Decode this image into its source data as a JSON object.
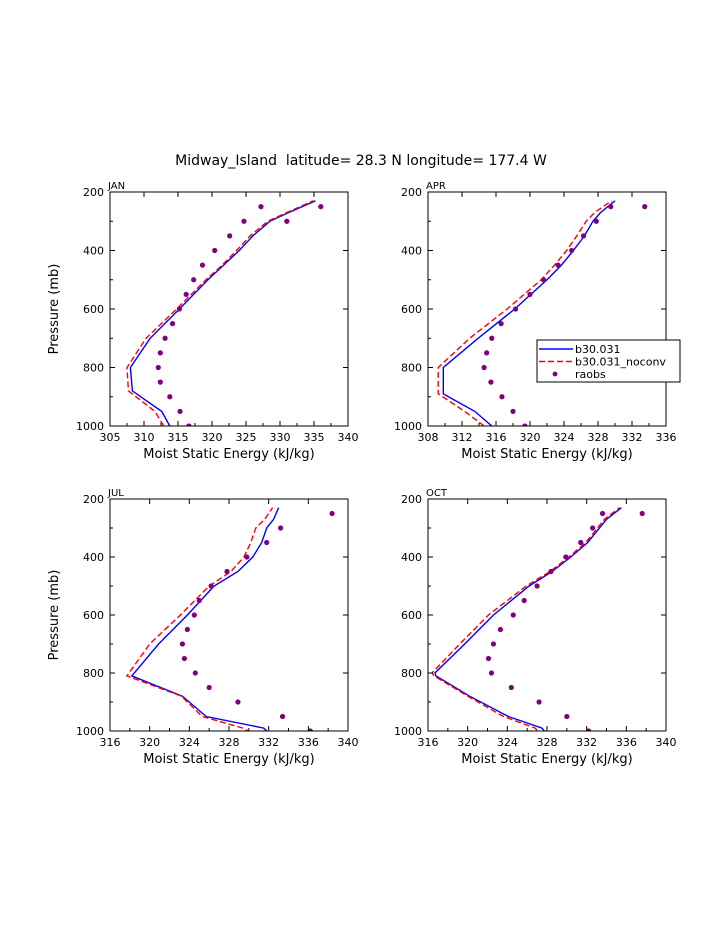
{
  "title": "Midway_Island  latitude= 28.3 N longitude= 177.4 W",
  "legend": {
    "entries": [
      {
        "label": "b30.031",
        "color": "#0000ff",
        "style": "solid"
      },
      {
        "label": "b30.031_noconv",
        "color": "#ff0000",
        "style": "dashed"
      },
      {
        "label": "raobs",
        "color": "#800080",
        "style": "dot"
      }
    ],
    "placement": "right of APR panel"
  },
  "chart_data": [
    {
      "type": "line",
      "panel": "JAN",
      "title": "JAN",
      "xlabel": "Moist Static Energy (kJ/kg)",
      "ylabel": "Pressure (mb)",
      "xlim": [
        305,
        340
      ],
      "ylim": [
        200,
        1000
      ],
      "y_inverted": true,
      "xticks": [
        "305",
        "310",
        "315",
        "320",
        "325",
        "330",
        "335",
        "340"
      ],
      "yticks": [
        "200",
        "400",
        "600",
        "800",
        "1000"
      ],
      "series": [
        {
          "name": "b30.031",
          "color": "#0000ff",
          "dash": "solid",
          "x": [
            313.8,
            312.6,
            308.3,
            308.0,
            310.9,
            315.2,
            319.4,
            321.7,
            324.0,
            326.0,
            328.5,
            331.3,
            335.2
          ],
          "y": [
            1000,
            950,
            880,
            800,
            700,
            600,
            500,
            450,
            400,
            350,
            300,
            270,
            230
          ]
        },
        {
          "name": "b30.031_noconv",
          "color": "#ff0000",
          "dash": "dashed",
          "x": [
            312.9,
            311.6,
            307.7,
            307.5,
            310.3,
            314.8,
            319.1,
            321.5,
            323.6,
            325.6,
            328.2,
            331.0,
            334.9
          ],
          "y": [
            1000,
            950,
            880,
            800,
            700,
            600,
            500,
            450,
            400,
            350,
            300,
            270,
            230
          ]
        },
        {
          "name": "raobs",
          "color": "#800080",
          "dash": "dot",
          "x": [
            316.6,
            315.3,
            313.8,
            312.4,
            312.1,
            312.4,
            313.1,
            314.2,
            315.2,
            316.2,
            317.3,
            318.6,
            320.4,
            322.6,
            324.7,
            327.2,
            331.0,
            336.0
          ],
          "y": [
            1000,
            950,
            900,
            850,
            800,
            750,
            700,
            650,
            600,
            550,
            500,
            450,
            400,
            350,
            300,
            250,
            300,
            250
          ]
        }
      ]
    },
    {
      "type": "line",
      "panel": "APR",
      "title": "APR",
      "xlabel": "Moist Static Energy (kJ/kg)",
      "ylabel": "",
      "xlim": [
        308,
        336
      ],
      "ylim": [
        200,
        1000
      ],
      "y_inverted": true,
      "xticks": [
        "308",
        "312",
        "316",
        "320",
        "324",
        "328",
        "332",
        "336"
      ],
      "yticks": [
        "200",
        "400",
        "600",
        "800",
        "1000"
      ],
      "series": [
        {
          "name": "b30.031",
          "color": "#0000ff",
          "dash": "solid",
          "x": [
            315.5,
            313.5,
            309.8,
            309.8,
            313.9,
            318.2,
            322.0,
            323.7,
            325.1,
            326.4,
            327.4,
            328.3,
            330.0
          ],
          "y": [
            1000,
            950,
            890,
            800,
            700,
            600,
            500,
            450,
            400,
            350,
            300,
            270,
            230
          ]
        },
        {
          "name": "b30.031_noconv",
          "color": "#ff0000",
          "dash": "dashed",
          "x": [
            314.6,
            312.3,
            309.2,
            309.2,
            312.9,
            317.3,
            321.3,
            322.9,
            324.3,
            325.5,
            326.6,
            327.6,
            329.6
          ],
          "y": [
            1000,
            950,
            890,
            800,
            700,
            600,
            500,
            450,
            400,
            350,
            300,
            270,
            230
          ]
        },
        {
          "name": "raobs",
          "color": "#800080",
          "dash": "dot",
          "x": [
            319.4,
            318.0,
            316.7,
            315.4,
            314.6,
            314.9,
            315.5,
            316.6,
            318.3,
            320.0,
            321.6,
            323.3,
            324.9,
            326.3,
            327.8,
            329.5,
            333.5
          ],
          "y": [
            1000,
            950,
            900,
            850,
            800,
            750,
            700,
            650,
            600,
            550,
            500,
            450,
            400,
            350,
            300,
            250,
            250
          ]
        }
      ]
    },
    {
      "type": "line",
      "panel": "JUL",
      "title": "JUL",
      "xlabel": "Moist Static Energy (kJ/kg)",
      "ylabel": "Pressure (mb)",
      "xlim": [
        316,
        340
      ],
      "ylim": [
        200,
        1000
      ],
      "y_inverted": true,
      "xticks": [
        "316",
        "320",
        "324",
        "328",
        "332",
        "336",
        "340"
      ],
      "yticks": [
        "200",
        "400",
        "600",
        "800",
        "1000"
      ],
      "series": [
        {
          "name": "b30.031",
          "color": "#0000ff",
          "dash": "solid",
          "x": [
            332.4,
            331.5,
            325.7,
            323.3,
            318.2,
            320.9,
            323.8,
            326.5,
            328.9,
            330.4,
            331.3,
            331.8,
            332.5,
            333.0
          ],
          "y": [
            1020,
            990,
            950,
            880,
            810,
            700,
            600,
            500,
            450,
            400,
            350,
            300,
            270,
            230
          ]
        },
        {
          "name": "b30.031_noconv",
          "color": "#ff0000",
          "dash": "dashed",
          "x": [
            331.0,
            329.4,
            325.3,
            323.2,
            317.7,
            320.0,
            323.1,
            326.0,
            328.2,
            329.5,
            330.2,
            330.7,
            331.6,
            332.4
          ],
          "y": [
            1020,
            990,
            950,
            880,
            810,
            700,
            600,
            500,
            450,
            400,
            350,
            300,
            270,
            230
          ]
        },
        {
          "name": "raobs",
          "color": "#800080",
          "dash": "dot",
          "x": [
            336.2,
            333.4,
            328.9,
            326.0,
            324.6,
            323.5,
            323.3,
            323.8,
            324.5,
            325.0,
            326.2,
            327.8,
            329.8,
            331.8,
            333.2,
            338.4
          ],
          "y": [
            1000,
            950,
            900,
            850,
            800,
            750,
            700,
            650,
            600,
            550,
            500,
            450,
            400,
            350,
            300,
            250
          ]
        }
      ]
    },
    {
      "type": "line",
      "panel": "OCT",
      "title": "OCT",
      "xlabel": "Moist Static Energy (kJ/kg)",
      "ylabel": "",
      "xlim": [
        316,
        340
      ],
      "ylim": [
        200,
        1000
      ],
      "y_inverted": true,
      "xticks": [
        "316",
        "320",
        "324",
        "328",
        "332",
        "336",
        "340"
      ],
      "yticks": [
        "200",
        "400",
        "600",
        "800",
        "1000"
      ],
      "series": [
        {
          "name": "b30.031",
          "color": "#0000ff",
          "dash": "solid",
          "x": [
            328.2,
            327.5,
            324.1,
            320.2,
            316.8,
            316.7,
            319.7,
            322.6,
            326.2,
            328.5,
            330.4,
            332.1,
            334.0,
            335.5
          ],
          "y": [
            1020,
            990,
            950,
            880,
            810,
            800,
            700,
            600,
            500,
            450,
            400,
            350,
            270,
            230
          ]
        },
        {
          "name": "b30.031_noconv",
          "color": "#ff0000",
          "dash": "dashed",
          "x": [
            327.6,
            326.8,
            323.6,
            320.0,
            316.6,
            316.4,
            319.2,
            322.1,
            325.9,
            328.3,
            330.2,
            331.9,
            333.8,
            335.3
          ],
          "y": [
            1020,
            990,
            950,
            880,
            810,
            800,
            700,
            600,
            500,
            450,
            400,
            350,
            270,
            230
          ]
        },
        {
          "name": "raobs",
          "color": "#800080",
          "dash": "dot",
          "x": [
            332.2,
            330.0,
            327.2,
            324.4,
            322.4,
            322.1,
            322.6,
            323.3,
            324.6,
            325.7,
            327.0,
            328.4,
            329.9,
            331.4,
            332.6,
            333.6,
            337.6
          ],
          "y": [
            1000,
            950,
            900,
            850,
            800,
            750,
            700,
            650,
            600,
            550,
            500,
            450,
            400,
            350,
            300,
            250,
            250
          ]
        }
      ]
    }
  ]
}
